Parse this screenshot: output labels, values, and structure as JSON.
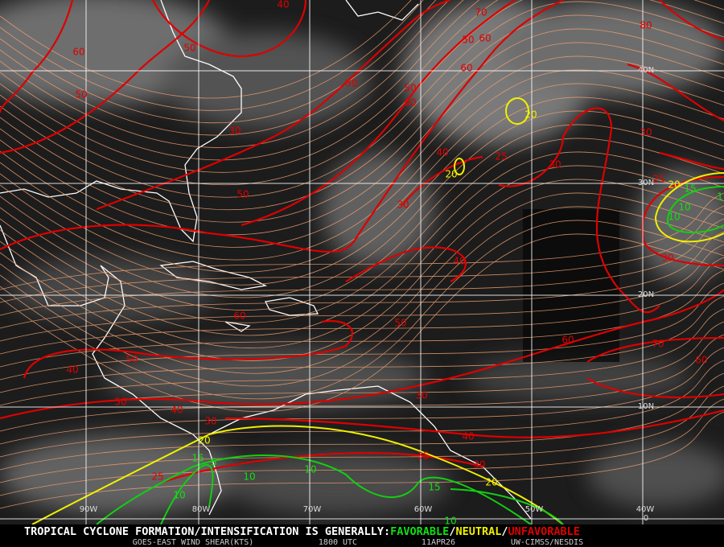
{
  "map": {
    "lat_labels": [
      "40N",
      "30N",
      "20N",
      "10N",
      "0"
    ],
    "lon_labels": [
      "90W",
      "80W",
      "70W",
      "60W",
      "50W",
      "40W"
    ],
    "contours": {
      "red": [
        "60",
        "50",
        "40",
        "50",
        "30",
        "30",
        "50",
        "60",
        "50",
        "40",
        "50",
        "40",
        "30",
        "25",
        "50",
        "30",
        "60",
        "70",
        "60",
        "40",
        "35",
        "30",
        "40",
        "30",
        "25",
        "30",
        "40",
        "50",
        "60",
        "60",
        "50",
        "60",
        "70",
        "80",
        "30",
        "25",
        "30"
      ],
      "yellow": [
        "20",
        "20",
        "20",
        "20",
        "20"
      ],
      "green": [
        "15",
        "10",
        "10",
        "1",
        "15",
        "5",
        "10",
        "10",
        "10",
        "15",
        "10"
      ]
    },
    "footer": {
      "headline": "TROPICAL CYCLONE FORMATION/INTENSIFICATION IS GENERALLY:",
      "favorable": "FAVORABLE",
      "separator": "/",
      "neutral": "NEUTRAL",
      "unfavorable": "UNFAVORABLE",
      "product": "GOES-EAST WIND SHEAR(KTS)",
      "time": "1800 UTC",
      "date": "11APR26",
      "source": "UW-CIMSS/NESDIS"
    }
  }
}
